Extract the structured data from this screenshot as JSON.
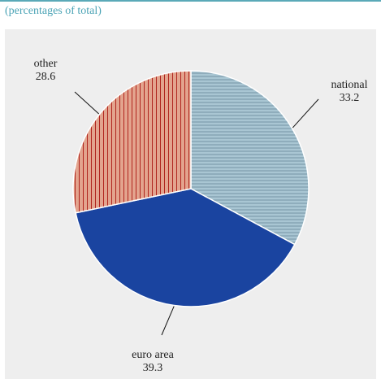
{
  "subtitle": "(percentages of total)",
  "chart_data": {
    "type": "pie",
    "slices": [
      {
        "name": "national",
        "value": 33.2,
        "value_label": "33.2",
        "color": "#a9c6d3",
        "pattern": "horizontal-lines",
        "pattern_color": "#6f8ea0"
      },
      {
        "name": "euro area",
        "value": 39.3,
        "value_label": "39.3",
        "color": "#1a44a0",
        "pattern": "solid"
      },
      {
        "name": "other",
        "value": 28.6,
        "value_label": "28.6",
        "color": "#e3a48e",
        "pattern": "vertical-lines",
        "pattern_color": "#b0251e"
      }
    ],
    "start_angle_deg": 0,
    "direction": "clockwise",
    "label_style": "outside-with-leader-lines"
  }
}
